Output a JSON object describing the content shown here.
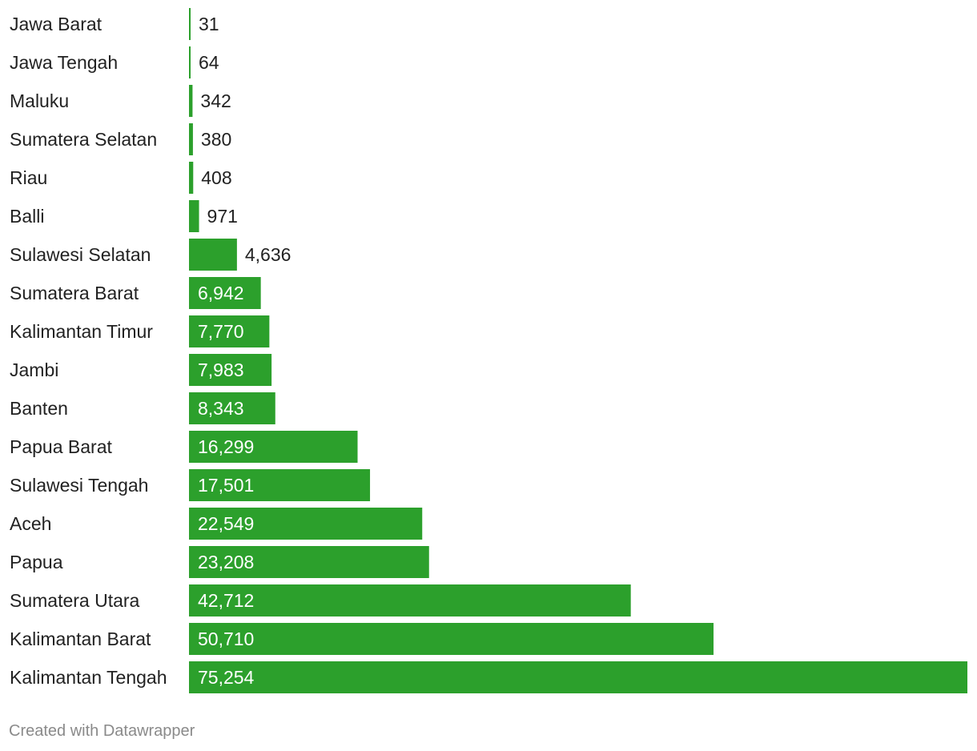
{
  "colors": {
    "bar": "#2ca02c",
    "label_dark": "#222222",
    "label_light": "#ffffff",
    "footer": "#8a8a8a"
  },
  "chart_data": {
    "type": "bar",
    "orientation": "horizontal",
    "categories": [
      "Jawa Barat",
      "Jawa Tengah",
      "Maluku",
      "Sumatera Selatan",
      "Riau",
      "Balli",
      "Sulawesi Selatan",
      "Sumatera Barat",
      "Kalimantan Timur",
      "Jambi",
      "Banten",
      "Papua Barat",
      "Sulawesi Tengah",
      "Aceh",
      "Papua",
      "Sumatera Utara",
      "Kalimantan Barat",
      "Kalimantan Tengah"
    ],
    "values": [
      31,
      64,
      342,
      380,
      408,
      971,
      4636,
      6942,
      7770,
      7983,
      8343,
      16299,
      17501,
      22549,
      23208,
      42712,
      50710,
      75254
    ],
    "value_labels": [
      "31",
      "64",
      "342",
      "380",
      "408",
      "971",
      "4,636",
      "6,942",
      "7,770",
      "7,983",
      "8,343",
      "16,299",
      "17,501",
      "22,549",
      "23,208",
      "42,712",
      "50,710",
      "75,254"
    ],
    "xlim": [
      0,
      75254
    ],
    "grid": false,
    "legend": "none"
  },
  "footer": {
    "credit": "Created with Datawrapper"
  }
}
